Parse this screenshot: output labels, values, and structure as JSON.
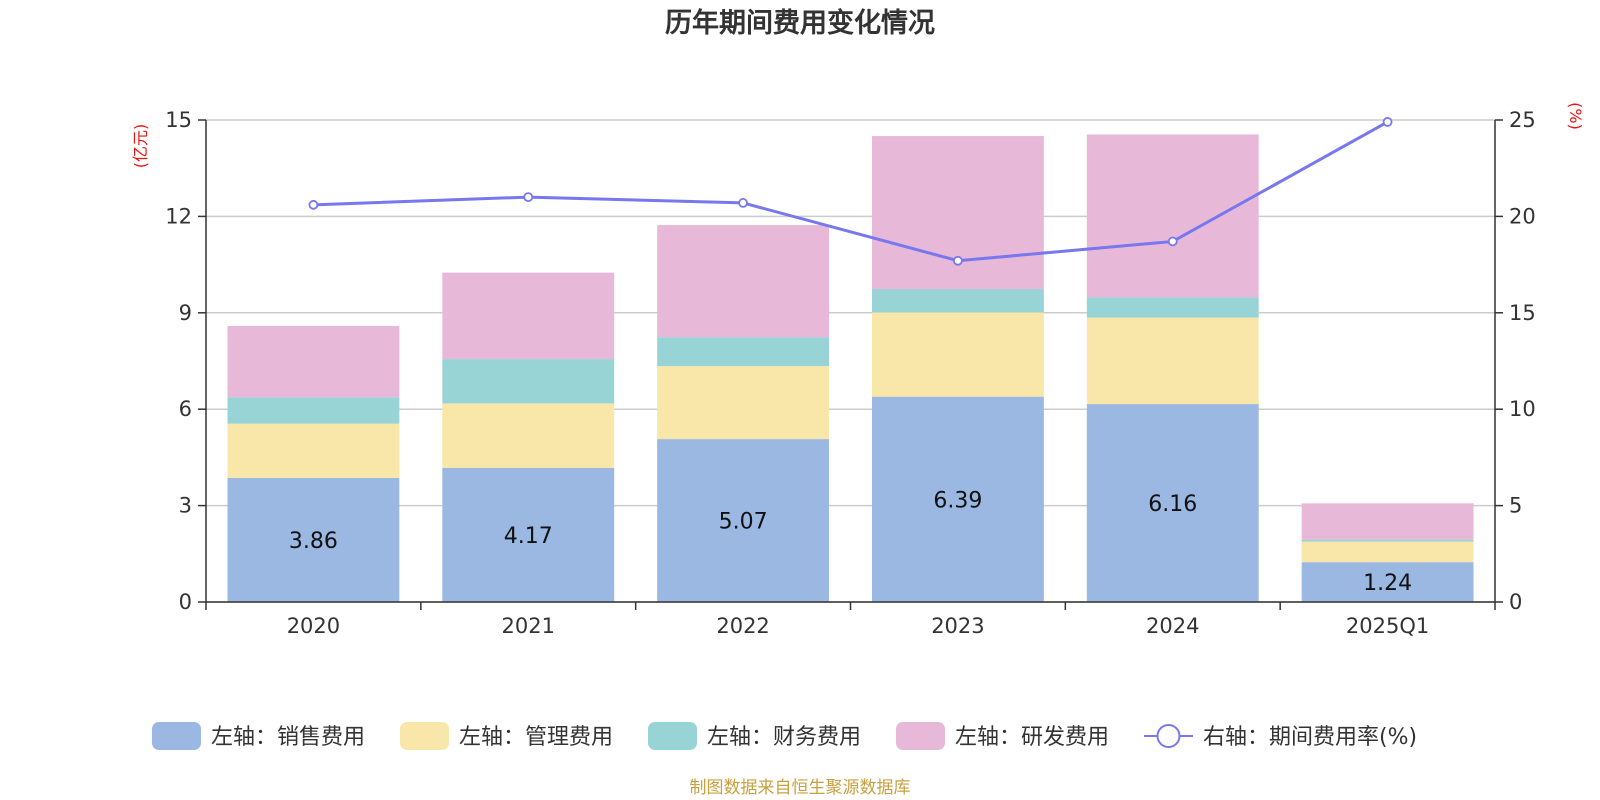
{
  "chart_data": {
    "type": "bar",
    "stacked": true,
    "title": "历年期间费用变化情况",
    "categories": [
      "2020",
      "2021",
      "2022",
      "2023",
      "2024",
      "2025Q1"
    ],
    "y_left": {
      "unit": "(亿元)",
      "ylim": [
        0,
        15
      ],
      "ticks": [
        "0",
        "3",
        "6",
        "9",
        "12",
        "15"
      ]
    },
    "y_right": {
      "unit": "(%)",
      "ylim": [
        0,
        25
      ],
      "ticks": [
        "0",
        "5",
        "10",
        "15",
        "20",
        "25"
      ]
    },
    "grid": true,
    "legend_position": "bottom",
    "series": [
      {
        "name": "左轴：销售费用",
        "axis": "left",
        "type": "bar",
        "color": "#9bb8e2",
        "values": [
          3.86,
          4.17,
          5.07,
          6.39,
          6.16,
          1.24
        ],
        "labels": [
          "3.86",
          "4.17",
          "5.07",
          "6.39",
          "6.16",
          "1.24"
        ]
      },
      {
        "name": "左轴：管理费用",
        "axis": "left",
        "type": "bar",
        "color": "#f8e7a8",
        "values": [
          1.69,
          2.01,
          2.27,
          2.62,
          2.69,
          0.64
        ]
      },
      {
        "name": "左轴：财务费用",
        "axis": "left",
        "type": "bar",
        "color": "#98d4d6",
        "values": [
          0.82,
          1.38,
          0.9,
          0.73,
          0.63,
          0.06
        ]
      },
      {
        "name": "左轴：研发费用",
        "axis": "left",
        "type": "bar",
        "color": "#e8b8d8",
        "values": [
          2.22,
          2.69,
          3.49,
          4.76,
          5.07,
          1.13
        ]
      },
      {
        "name": "右轴：期间费用率(%)",
        "axis": "right",
        "type": "line",
        "color": "#7777ee",
        "values": [
          20.6,
          21.0,
          20.7,
          17.7,
          18.7,
          24.9
        ]
      }
    ]
  },
  "source": "制图数据来自恒生聚源数据库"
}
